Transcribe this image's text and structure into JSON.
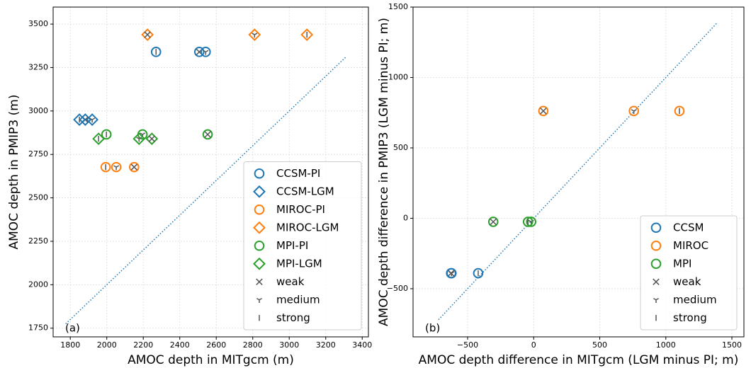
{
  "chart_data": [
    {
      "type": "scatter",
      "panel_label": "(a)",
      "xlabel": "AMOC depth in MITgcm (m)",
      "ylabel": "AMOC depth in PMIP3 (m)",
      "xlim": [
        1706,
        3434
      ],
      "ylim": [
        1700,
        3598
      ],
      "xticks": [
        1800,
        2000,
        2200,
        2400,
        2600,
        2800,
        3000,
        3200,
        3400
      ],
      "yticks": [
        1750,
        2000,
        2250,
        2500,
        2750,
        3000,
        3250,
        3500
      ],
      "grid": true,
      "legend": "lower right",
      "diagonal": [
        1775,
        3315
      ],
      "strength_color": "#555555",
      "strength_markers": [
        {
          "name": "weak",
          "symbol": "x"
        },
        {
          "name": "medium",
          "symbol": "tri_down"
        },
        {
          "name": "strong",
          "symbol": "vline"
        }
      ],
      "series": [
        {
          "name": "CCSM-PI",
          "color": "#1f77b4",
          "marker": "circle",
          "x": [
            2507,
            2542,
            2270
          ],
          "values": [
            3340,
            3340,
            3340
          ]
        },
        {
          "name": "CCSM-LGM",
          "color": "#1f77b4",
          "marker": "diamond",
          "x": [
            1882,
            1920,
            1850
          ],
          "values": [
            2950,
            2950,
            2950
          ]
        },
        {
          "name": "MIROC-PI",
          "color": "#ff7f0e",
          "marker": "circle",
          "x": [
            2150,
            2052,
            1994
          ],
          "values": [
            2677,
            2677,
            2677
          ]
        },
        {
          "name": "MIROC-LGM",
          "color": "#ff7f0e",
          "marker": "diamond",
          "x": [
            2223,
            2810,
            3097
          ],
          "values": [
            3439,
            3439,
            3439
          ]
        },
        {
          "name": "MPI-PI",
          "color": "#2ca02c",
          "marker": "circle",
          "x": [
            2553,
            2196,
            1998
          ],
          "values": [
            2865,
            2865,
            2865
          ]
        },
        {
          "name": "MPI-LGM",
          "color": "#2ca02c",
          "marker": "diamond",
          "x": [
            2247,
            2177,
            1955
          ],
          "values": [
            2840,
            2840,
            2840
          ]
        }
      ]
    },
    {
      "type": "scatter",
      "panel_label": "(b)",
      "xlabel": "AMOC depth difference in MITgcm (LGM minus PI; m)",
      "ylabel": "AMOC depth difference in PMIP3 (LGM minus PI; m)",
      "xlim": [
        -913,
        1591
      ],
      "ylim": [
        -842,
        1500
      ],
      "xticks": [
        {
          "value": -500,
          "label": "−500"
        },
        0,
        500,
        1000,
        1500
      ],
      "yticks": [
        {
          "value": -500,
          "label": "−500"
        },
        0,
        500,
        1000,
        1500
      ],
      "grid": true,
      "legend": "lower right",
      "diagonal": [
        -720,
        1385
      ],
      "strength_color": "#555555",
      "strength_markers": [
        {
          "name": "weak",
          "symbol": "x"
        },
        {
          "name": "medium",
          "symbol": "tri_down"
        },
        {
          "name": "strong",
          "symbol": "vline"
        }
      ],
      "series": [
        {
          "name": "CCSM",
          "color": "#1f77b4",
          "marker": "circle",
          "x": [
            -625,
            -622,
            -420
          ],
          "values": [
            -390,
            -390,
            -390
          ]
        },
        {
          "name": "MIROC",
          "color": "#ff7f0e",
          "marker": "circle",
          "x": [
            73,
            758,
            1103
          ],
          "values": [
            762,
            762,
            762
          ]
        },
        {
          "name": "MPI",
          "color": "#2ca02c",
          "marker": "circle",
          "x": [
            -306,
            -19,
            -43
          ],
          "values": [
            -25,
            -25,
            -25
          ]
        }
      ]
    }
  ]
}
